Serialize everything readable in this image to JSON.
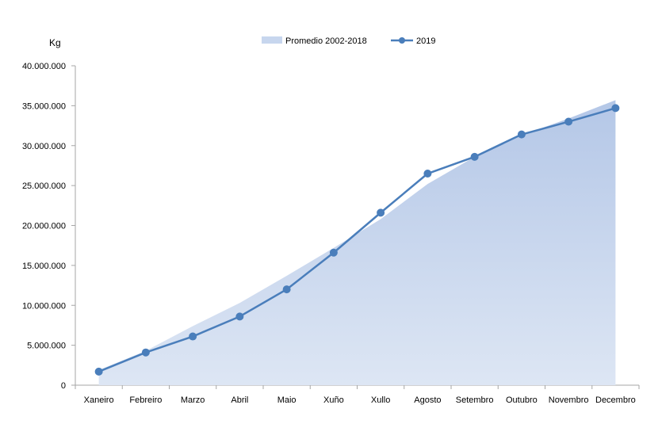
{
  "chart_data": {
    "type": "line",
    "title": "",
    "ylabel": "Kg",
    "xlabel": "",
    "ylim": [
      0,
      40000000
    ],
    "yticks": [
      0,
      5000000,
      10000000,
      15000000,
      20000000,
      25000000,
      30000000,
      35000000,
      40000000
    ],
    "ytick_labels": [
      "0",
      "5.000.000",
      "10.000.000",
      "15.000.000",
      "20.000.000",
      "25.000.000",
      "30.000.000",
      "35.000.000",
      "40.000.000"
    ],
    "categories": [
      "Xaneiro",
      "Febreiro",
      "Marzo",
      "Abril",
      "Maio",
      "Xuño",
      "Xullo",
      "Agosto",
      "Setembro",
      "Outubro",
      "Novembro",
      "Decembro"
    ],
    "legend_position": "top-center",
    "grid": false,
    "series": [
      {
        "name": "Promedio 2002-2018",
        "kind": "area",
        "color": "#b4c7e7",
        "values": [
          1900000,
          4300000,
          7400000,
          10300000,
          13700000,
          17200000,
          20800000,
          25200000,
          28600000,
          31300000,
          33400000,
          35700000
        ]
      },
      {
        "name": "2019",
        "kind": "line",
        "color": "#4a7ebb",
        "values": [
          1700000,
          4100000,
          6100000,
          8600000,
          12000000,
          16600000,
          21600000,
          26500000,
          28600000,
          31400000,
          33000000,
          34700000
        ]
      }
    ]
  }
}
